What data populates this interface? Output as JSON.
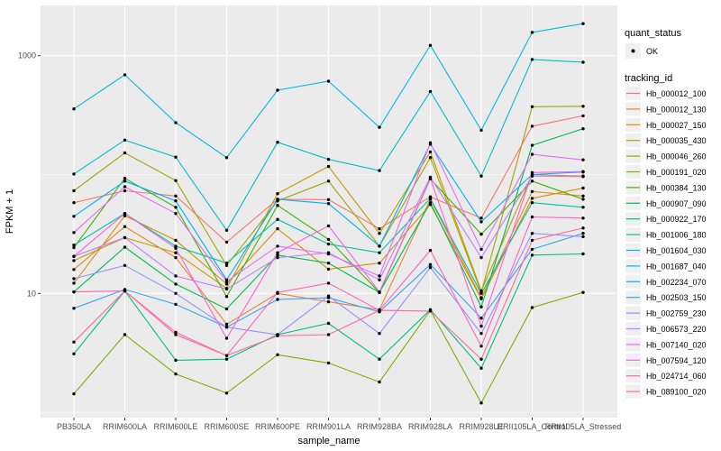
{
  "chart_data": {
    "type": "line",
    "title": "",
    "xlabel": "sample_name",
    "ylabel": "FPKM + 1",
    "y_scale": "log10",
    "ylim": [
      0.9,
      2650
    ],
    "grid": true,
    "legend_position": "right",
    "y_axis": {
      "major_ticks": [
        {
          "label": "1000",
          "value": 1000
        },
        {
          "label": "10",
          "value": 10
        }
      ],
      "minor_values": [
        100,
        1
      ]
    },
    "categories": [
      "PB350LA",
      "RRIM600LA",
      "RRIM600LE",
      "RRIM600SE",
      "RRIM600PE",
      "RRIM901LA",
      "RRIM928BA",
      "RRIM928LA",
      "RRIM928LE",
      "RRII105LA_Control",
      "RRII105LA_Stressed"
    ],
    "legend": {
      "quant_title": "quant_status",
      "quant_items": [
        {
          "label": "OK",
          "marker": "point"
        }
      ],
      "tracking_title": "tracking_id"
    },
    "series": [
      {
        "name": "Hb_000012_100",
        "color": "#F8766D",
        "values": [
          58,
          73,
          66,
          27,
          62,
          61.5,
          35,
          65,
          43,
          255,
          312
        ]
      },
      {
        "name": "Hb_000012_130",
        "color": "#EA8331",
        "values": [
          15.9,
          36.5,
          20,
          5.5,
          10,
          8.5,
          7.3,
          62,
          9.2,
          72,
          66
        ]
      },
      {
        "name": "Hb_000027_150",
        "color": "#D89000",
        "values": [
          12.2,
          45,
          28,
          12,
          35,
          16,
          18,
          56,
          9.0,
          63,
          77
        ]
      },
      {
        "name": "Hb_000035_430",
        "color": "#C09B00",
        "values": [
          18.9,
          29.5,
          22,
          11,
          69,
          117,
          32,
          155,
          10.5,
          100,
          97
        ]
      },
      {
        "name": "Hb_000046_260",
        "color": "#A3A500",
        "values": [
          73,
          152,
          89,
          17.2,
          60,
          88,
          25,
          139,
          10.2,
          372,
          375
        ]
      },
      {
        "name": "Hb_000191_020",
        "color": "#7CAE00",
        "values": [
          1.43,
          4.5,
          2.1,
          1.45,
          3.05,
          2.6,
          1.8,
          7.2,
          1.2,
          7.6,
          10.2
        ]
      },
      {
        "name": "Hb_000384_130",
        "color": "#39B600",
        "values": [
          24.3,
          93,
          53,
          9.4,
          55,
          28.5,
          10.2,
          92,
          31.5,
          88,
          62
        ]
      },
      {
        "name": "Hb_000907_090",
        "color": "#00BB4E",
        "values": [
          10.3,
          24.5,
          12,
          7.4,
          21,
          18,
          10.2,
          58,
          7.7,
          176,
          243
        ]
      },
      {
        "name": "Hb_000922_170",
        "color": "#00BF7D",
        "values": [
          3.1,
          10.5,
          2.74,
          2.8,
          4.5,
          5.6,
          2.8,
          7.3,
          2.35,
          21,
          21.5
        ]
      },
      {
        "name": "Hb_001006_180",
        "color": "#00C1A3",
        "values": [
          25.5,
          47,
          25,
          18,
          42,
          26,
          22,
          63,
          10,
          58,
          53
        ]
      },
      {
        "name": "Hb_001604_030",
        "color": "#00BFC4",
        "values": [
          101,
          195,
          140,
          34,
          187,
          134,
          108,
          500,
          97,
          930,
          880
        ]
      },
      {
        "name": "Hb_001687_040",
        "color": "#00BAE5",
        "values": [
          357,
          690,
          273,
          139,
          512,
          610,
          250,
          1220,
          236,
          1570,
          1860
        ]
      },
      {
        "name": "Hb_002234_070",
        "color": "#00B0F6",
        "values": [
          44.5,
          88,
          60,
          13,
          62,
          57,
          25,
          180,
          40,
          100,
          105
        ]
      },
      {
        "name": "Hb_002503_150",
        "color": "#35A2FF",
        "values": [
          7.5,
          10.8,
          8.1,
          5.2,
          8.9,
          9.2,
          7.0,
          17.5,
          6.2,
          23.5,
          32
        ]
      },
      {
        "name": "Hb_002759_230",
        "color": "#9590FF",
        "values": [
          13.3,
          17.2,
          10,
          5.2,
          4.5,
          9.5,
          4.6,
          16.5,
          4.6,
          32,
          30
        ]
      },
      {
        "name": "Hb_006573_220",
        "color": "#C77CFF",
        "values": [
          20.5,
          29.5,
          14,
          10.9,
          20,
          22,
          13,
          95,
          20,
          97,
          96
        ]
      },
      {
        "name": "Hb_007140_020",
        "color": "#E76BF3",
        "values": [
          32.5,
          79,
          47,
          12.6,
          25,
          21.5,
          14,
          185,
          23.5,
          148,
          133
        ]
      },
      {
        "name": "Hb_007594_120",
        "color": "#FA62DB",
        "values": [
          20.5,
          47,
          24,
          4.2,
          22,
          37,
          10.3,
          93,
          5.3,
          104,
          106
        ]
      },
      {
        "name": "Hb_024714_060",
        "color": "#FF62BC",
        "values": [
          10.3,
          10.5,
          4.7,
          3.0,
          10.2,
          12.2,
          7.2,
          23,
          3.6,
          44,
          43
        ]
      },
      {
        "name": "Hb_089100_020",
        "color": "#FF6A98",
        "values": [
          3.9,
          10.5,
          4.5,
          3.0,
          4.4,
          4.5,
          7.2,
          7.1,
          2.8,
          28,
          35.5
        ]
      }
    ],
    "style": {
      "panel_bg": "#EBEBEB",
      "grid_color": "#FFFFFF",
      "tick_text_color": "#4D4D4D",
      "point_color": "#000000",
      "legend_key_bg": "#F0F0F0"
    }
  }
}
